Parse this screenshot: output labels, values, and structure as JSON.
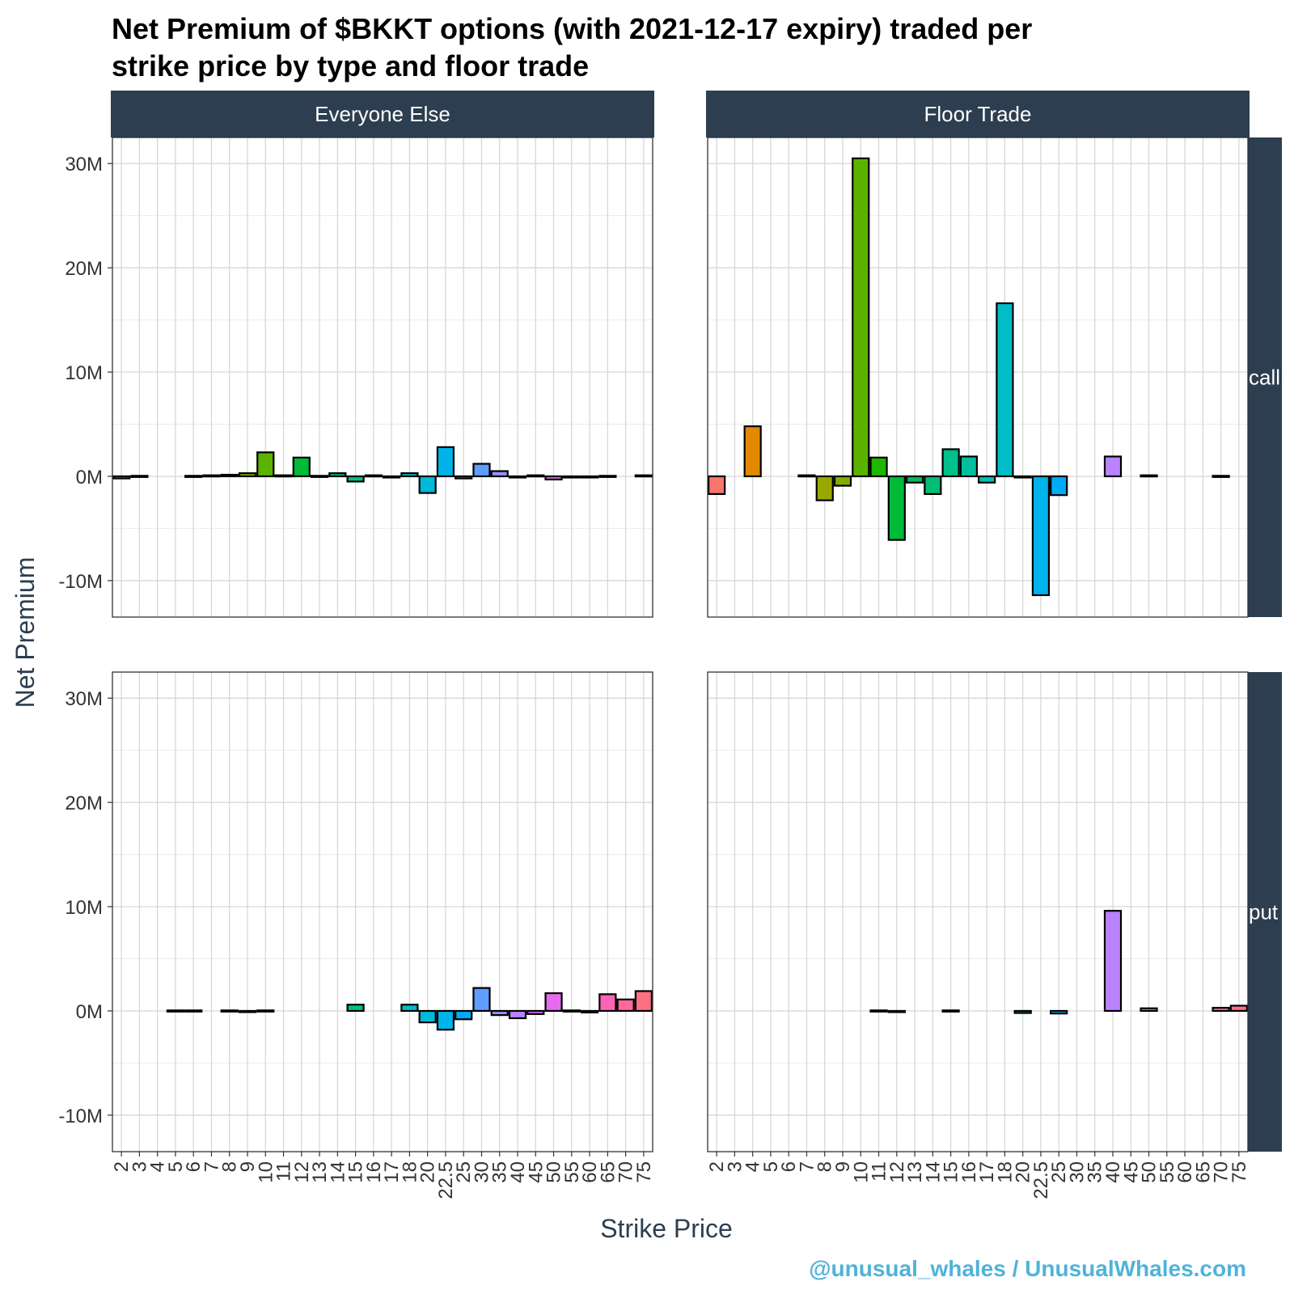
{
  "chart_data": {
    "type": "bar",
    "title_lines": [
      "Net Premium of $BKKT options (with 2021-12-17 expiry) traded per",
      "strike price by type and floor trade"
    ],
    "xlabel": "Strike Price",
    "ylabel": "Net Premium",
    "caption": "@unusual_whales / UnusualWhales.com",
    "ylim": [
      -13500000,
      32500000
    ],
    "y_ticks": [
      -10000000,
      0,
      10000000,
      20000000,
      30000000
    ],
    "y_tick_labels": [
      "-10M",
      "0M",
      "10M",
      "20M",
      "30M"
    ],
    "columns": [
      {
        "label": "Everyone Else",
        "categories": [
          "2",
          "3",
          "4",
          "5",
          "6",
          "7",
          "8",
          "9",
          "10",
          "11",
          "12",
          "13",
          "14",
          "15",
          "16",
          "17",
          "18",
          "20",
          "22.5",
          "25",
          "30",
          "35",
          "40",
          "45",
          "50",
          "55",
          "60",
          "65",
          "70",
          "75"
        ]
      },
      {
        "label": "Floor Trade",
        "categories": [
          "2",
          "3",
          "4",
          "5",
          "6",
          "7",
          "8",
          "9",
          "10",
          "11",
          "12",
          "13",
          "14",
          "15",
          "16",
          "17",
          "18",
          "20",
          "22.5",
          "25",
          "30",
          "35",
          "40",
          "45",
          "50",
          "55",
          "60",
          "65",
          "70",
          "75"
        ]
      }
    ],
    "rows": [
      {
        "label": "call"
      },
      {
        "label": "put"
      }
    ],
    "category_colors": {
      "2": "#F8766D",
      "3": "#EF7F49",
      "4": "#E38900",
      "5": "#D49200",
      "6": "#C49A00",
      "7": "#B0A100",
      "8": "#99A800",
      "9": "#7FAE00",
      "10": "#5BB300",
      "11": "#1EB600",
      "12": "#00BA38",
      "13": "#00BC59",
      "14": "#00BE73",
      "15": "#00C08B",
      "16": "#00C0A0",
      "17": "#00BFB5",
      "18": "#00BDC8",
      "20": "#00B9D9",
      "22.5": "#00B3E9",
      "25": "#00ABF6",
      "30": "#619CFF",
      "35": "#9590FF",
      "40": "#B983FF",
      "45": "#D575FE",
      "50": "#E86AF0",
      "55": "#F763E0",
      "60": "#FF61CC",
      "65": "#FF63B6",
      "70": "#FF689E",
      "75": "#FC7084"
    },
    "panels": [
      {
        "column": "Everyone Else",
        "row": "call",
        "bars": [
          {
            "x": "2",
            "value": -200000
          },
          {
            "x": "3",
            "value": 50000
          },
          {
            "x": "6",
            "value": 50000
          },
          {
            "x": "7",
            "value": 100000
          },
          {
            "x": "8",
            "value": 150000
          },
          {
            "x": "9",
            "value": 300000
          },
          {
            "x": "10",
            "value": 2300000
          },
          {
            "x": "11",
            "value": 100000
          },
          {
            "x": "12",
            "value": 1800000
          },
          {
            "x": "13",
            "value": 50000
          },
          {
            "x": "14",
            "value": 300000
          },
          {
            "x": "15",
            "value": -500000
          },
          {
            "x": "16",
            "value": 100000
          },
          {
            "x": "17",
            "value": -50000
          },
          {
            "x": "18",
            "value": 300000
          },
          {
            "x": "20",
            "value": -1600000
          },
          {
            "x": "22.5",
            "value": 2800000
          },
          {
            "x": "25",
            "value": -200000
          },
          {
            "x": "30",
            "value": 1200000
          },
          {
            "x": "35",
            "value": 500000
          },
          {
            "x": "40",
            "value": -100000
          },
          {
            "x": "45",
            "value": 100000
          },
          {
            "x": "50",
            "value": -300000
          },
          {
            "x": "55",
            "value": -100000
          },
          {
            "x": "60",
            "value": -50000
          },
          {
            "x": "65",
            "value": 50000
          },
          {
            "x": "75",
            "value": 100000
          }
        ]
      },
      {
        "column": "Floor Trade",
        "row": "call",
        "bars": [
          {
            "x": "2",
            "value": -1700000
          },
          {
            "x": "4",
            "value": 4800000
          },
          {
            "x": "7",
            "value": 100000
          },
          {
            "x": "8",
            "value": -2300000
          },
          {
            "x": "9",
            "value": -900000
          },
          {
            "x": "10",
            "value": 30500000
          },
          {
            "x": "11",
            "value": 1800000
          },
          {
            "x": "12",
            "value": -6100000
          },
          {
            "x": "13",
            "value": -600000
          },
          {
            "x": "14",
            "value": -1700000
          },
          {
            "x": "15",
            "value": 2600000
          },
          {
            "x": "16",
            "value": 1900000
          },
          {
            "x": "17",
            "value": -600000
          },
          {
            "x": "18",
            "value": 16600000
          },
          {
            "x": "20",
            "value": -50000
          },
          {
            "x": "22.5",
            "value": -11400000
          },
          {
            "x": "25",
            "value": -1800000
          },
          {
            "x": "40",
            "value": 1900000
          },
          {
            "x": "50",
            "value": 100000
          },
          {
            "x": "70",
            "value": 50000
          }
        ]
      },
      {
        "column": "Everyone Else",
        "row": "put",
        "bars": [
          {
            "x": "5",
            "value": 50000
          },
          {
            "x": "6",
            "value": 50000
          },
          {
            "x": "8",
            "value": 50000
          },
          {
            "x": "9",
            "value": -50000
          },
          {
            "x": "10",
            "value": 50000
          },
          {
            "x": "15",
            "value": 600000
          },
          {
            "x": "18",
            "value": 600000
          },
          {
            "x": "20",
            "value": -1100000
          },
          {
            "x": "22.5",
            "value": -1800000
          },
          {
            "x": "25",
            "value": -800000
          },
          {
            "x": "30",
            "value": 2200000
          },
          {
            "x": "35",
            "value": -400000
          },
          {
            "x": "40",
            "value": -700000
          },
          {
            "x": "45",
            "value": -300000
          },
          {
            "x": "50",
            "value": 1700000
          },
          {
            "x": "55",
            "value": 50000
          },
          {
            "x": "60",
            "value": -150000
          },
          {
            "x": "65",
            "value": 1600000
          },
          {
            "x": "70",
            "value": 1100000
          },
          {
            "x": "75",
            "value": 1900000
          }
        ]
      },
      {
        "column": "Floor Trade",
        "row": "put",
        "bars": [
          {
            "x": "11",
            "value": 50000
          },
          {
            "x": "12",
            "value": -100000
          },
          {
            "x": "15",
            "value": 50000
          },
          {
            "x": "20",
            "value": -200000
          },
          {
            "x": "25",
            "value": -250000
          },
          {
            "x": "40",
            "value": 9600000
          },
          {
            "x": "50",
            "value": 250000
          },
          {
            "x": "70",
            "value": 300000
          },
          {
            "x": "75",
            "value": 500000
          }
        ]
      }
    ]
  }
}
